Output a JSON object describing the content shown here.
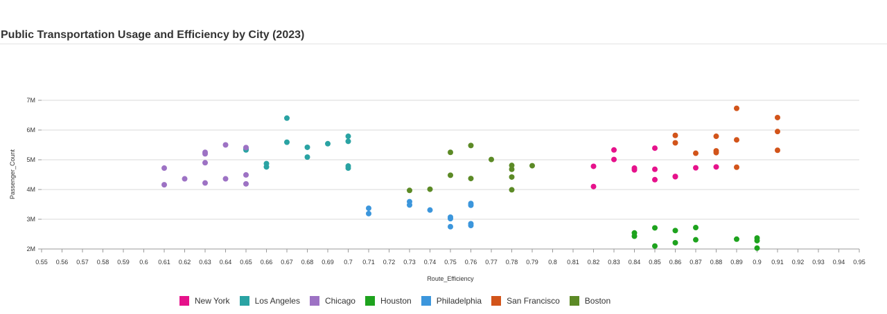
{
  "chart_data": {
    "type": "scatter",
    "title": "Public Transportation Usage and Efficiency by City (2023)",
    "xlabel": "Route_Efficiency",
    "ylabel": "Passenger_Count",
    "xlim": [
      0.55,
      0.95
    ],
    "ylim": [
      2000000,
      7000000
    ],
    "x_ticks": [
      "0.55",
      "0.56",
      "0.57",
      "0.58",
      "0.59",
      "0.6",
      "0.61",
      "0.62",
      "0.63",
      "0.64",
      "0.65",
      "0.66",
      "0.67",
      "0.68",
      "0.69",
      "0.7",
      "0.71",
      "0.72",
      "0.73",
      "0.74",
      "0.75",
      "0.76",
      "0.77",
      "0.78",
      "0.79",
      "0.8",
      "0.81",
      "0.82",
      "0.83",
      "0.84",
      "0.85",
      "0.86",
      "0.87",
      "0.88",
      "0.89",
      "0.9",
      "0.91",
      "0.92",
      "0.93",
      "0.94",
      "0.95"
    ],
    "y_ticks": [
      {
        "value": 2000000,
        "label": "2M"
      },
      {
        "value": 3000000,
        "label": "3M"
      },
      {
        "value": 4000000,
        "label": "4M"
      },
      {
        "value": 5000000,
        "label": "5M"
      },
      {
        "value": 6000000,
        "label": "6M"
      },
      {
        "value": 7000000,
        "label": "7M"
      }
    ],
    "grid": "horizontal",
    "legend_position": "bottom",
    "series": [
      {
        "name": "New York",
        "color": "#e6128b",
        "points": [
          [
            0.82,
            4780000
          ],
          [
            0.82,
            4100000
          ],
          [
            0.83,
            5330000
          ],
          [
            0.83,
            5010000
          ],
          [
            0.84,
            4720000
          ],
          [
            0.84,
            4660000
          ],
          [
            0.85,
            5390000
          ],
          [
            0.85,
            4680000
          ],
          [
            0.85,
            4330000
          ],
          [
            0.86,
            4440000
          ],
          [
            0.86,
            4430000
          ],
          [
            0.87,
            4730000
          ],
          [
            0.88,
            4760000
          ]
        ]
      },
      {
        "name": "Los Angeles",
        "color": "#2aa3a3",
        "points": [
          [
            0.65,
            5380000
          ],
          [
            0.65,
            5330000
          ],
          [
            0.66,
            4870000
          ],
          [
            0.66,
            4760000
          ],
          [
            0.67,
            6400000
          ],
          [
            0.67,
            5590000
          ],
          [
            0.68,
            5420000
          ],
          [
            0.68,
            5090000
          ],
          [
            0.69,
            5540000
          ],
          [
            0.7,
            5790000
          ],
          [
            0.7,
            5620000
          ],
          [
            0.7,
            4790000
          ],
          [
            0.7,
            4720000
          ]
        ]
      },
      {
        "name": "Chicago",
        "color": "#9d72c4",
        "points": [
          [
            0.61,
            4720000
          ],
          [
            0.61,
            4160000
          ],
          [
            0.62,
            4360000
          ],
          [
            0.63,
            5250000
          ],
          [
            0.63,
            5200000
          ],
          [
            0.63,
            4900000
          ],
          [
            0.63,
            4220000
          ],
          [
            0.64,
            5500000
          ],
          [
            0.64,
            4360000
          ],
          [
            0.65,
            5410000
          ],
          [
            0.65,
            4490000
          ],
          [
            0.65,
            4190000
          ]
        ]
      },
      {
        "name": "Houston",
        "color": "#1ea31e",
        "points": [
          [
            0.84,
            2540000
          ],
          [
            0.84,
            2430000
          ],
          [
            0.85,
            2710000
          ],
          [
            0.85,
            2100000
          ],
          [
            0.86,
            2620000
          ],
          [
            0.86,
            2210000
          ],
          [
            0.87,
            2720000
          ],
          [
            0.87,
            2310000
          ],
          [
            0.89,
            2330000
          ],
          [
            0.9,
            2370000
          ],
          [
            0.9,
            2280000
          ],
          [
            0.9,
            2030000
          ]
        ]
      },
      {
        "name": "Philadelphia",
        "color": "#3c96dc",
        "points": [
          [
            0.71,
            3370000
          ],
          [
            0.71,
            3190000
          ],
          [
            0.73,
            3590000
          ],
          [
            0.73,
            3480000
          ],
          [
            0.74,
            3310000
          ],
          [
            0.75,
            3070000
          ],
          [
            0.75,
            3020000
          ],
          [
            0.75,
            2750000
          ],
          [
            0.76,
            3530000
          ],
          [
            0.76,
            3470000
          ],
          [
            0.76,
            2850000
          ],
          [
            0.76,
            2790000
          ]
        ]
      },
      {
        "name": "San Francisco",
        "color": "#d2541a",
        "points": [
          [
            0.86,
            5820000
          ],
          [
            0.86,
            5570000
          ],
          [
            0.87,
            5220000
          ],
          [
            0.88,
            5790000
          ],
          [
            0.88,
            5300000
          ],
          [
            0.88,
            5240000
          ],
          [
            0.89,
            6730000
          ],
          [
            0.89,
            5670000
          ],
          [
            0.89,
            4750000
          ],
          [
            0.91,
            6420000
          ],
          [
            0.91,
            5950000
          ],
          [
            0.91,
            5320000
          ]
        ]
      },
      {
        "name": "Boston",
        "color": "#5c8a26",
        "points": [
          [
            0.73,
            3970000
          ],
          [
            0.74,
            4010000
          ],
          [
            0.75,
            5250000
          ],
          [
            0.75,
            4480000
          ],
          [
            0.76,
            5480000
          ],
          [
            0.76,
            4370000
          ],
          [
            0.77,
            5010000
          ],
          [
            0.78,
            4810000
          ],
          [
            0.78,
            4680000
          ],
          [
            0.78,
            4420000
          ],
          [
            0.78,
            3990000
          ],
          [
            0.79,
            4800000
          ]
        ]
      }
    ]
  }
}
